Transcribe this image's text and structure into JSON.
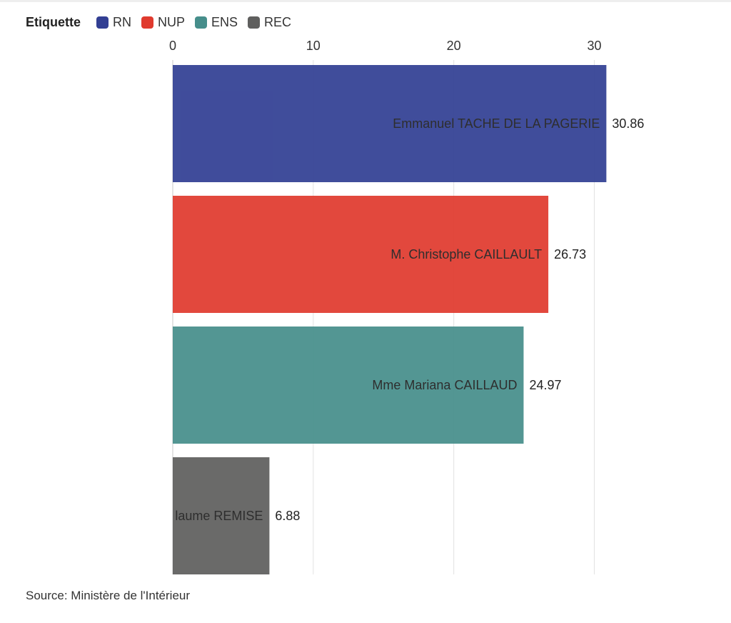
{
  "legend": {
    "title": "Etiquette",
    "items": [
      {
        "label": "RN",
        "color": "#323f93"
      },
      {
        "label": "NUP",
        "color": "#e03a2e"
      },
      {
        "label": "ENS",
        "color": "#468e8b"
      },
      {
        "label": "REC",
        "color": "#5f5f5e"
      }
    ]
  },
  "chart_data": {
    "type": "bar",
    "orientation": "horizontal",
    "categories": [
      "Emmanuel TACHE DE LA PAGERIE",
      "M. Christophe CAILLAULT",
      "Mme Mariana CAILLAUD",
      "laume REMISE"
    ],
    "values": [
      30.86,
      26.73,
      24.97,
      6.88
    ],
    "value_labels": [
      "30.86",
      "26.73",
      "24.97",
      "6.88"
    ],
    "groups": [
      "RN",
      "NUP",
      "ENS",
      "REC"
    ],
    "colors": [
      "#323f93",
      "#e03a2e",
      "#468e8b",
      "#5f5f5e"
    ],
    "xlim": [
      0,
      31.5
    ],
    "xticks": [
      0,
      10,
      20,
      30
    ],
    "tick_labels": [
      "0",
      "10",
      "20",
      "30"
    ],
    "xaxis_position": "top",
    "grid": true,
    "legend_position": "top-left"
  },
  "footer": {
    "source": "Source: Ministère de l'Intérieur"
  }
}
